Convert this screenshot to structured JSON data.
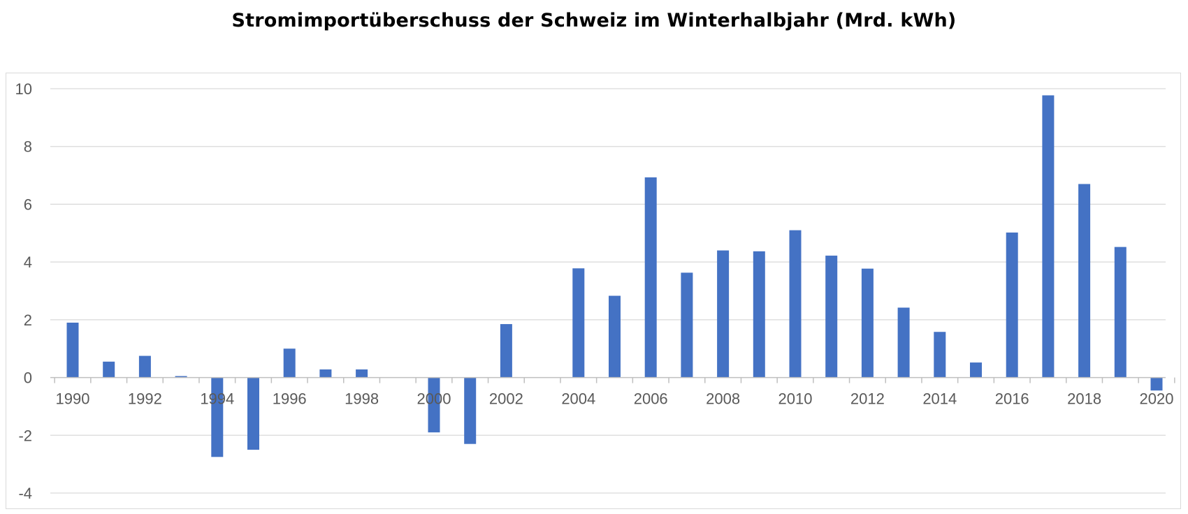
{
  "chart_data": {
    "type": "bar",
    "title": "Stromimportüberschuss der Schweiz im Winterhalbjahr (Mrd. kWh)",
    "xlabel": "",
    "ylabel": "",
    "categories": [
      1990,
      1991,
      1992,
      1993,
      1994,
      1995,
      1996,
      1997,
      1998,
      1999,
      2000,
      2001,
      2002,
      2003,
      2004,
      2005,
      2006,
      2007,
      2008,
      2009,
      2010,
      2011,
      2012,
      2013,
      2014,
      2015,
      2016,
      2017,
      2018,
      2019,
      2020
    ],
    "x_tick_labels": [
      "1990",
      "1992",
      "1994",
      "1996",
      "1998",
      "2000",
      "2002",
      "2004",
      "2006",
      "2008",
      "2010",
      "2012",
      "2014",
      "2016",
      "2018",
      "2020"
    ],
    "values": [
      1.9,
      0.55,
      0.75,
      0.05,
      -2.75,
      -2.5,
      1.0,
      0.28,
      0.28,
      0.0,
      -1.9,
      -2.3,
      1.85,
      0.0,
      3.78,
      2.83,
      6.93,
      3.63,
      4.4,
      4.37,
      5.1,
      4.22,
      3.77,
      2.42,
      1.58,
      0.52,
      5.02,
      9.77,
      6.7,
      4.52,
      -0.45
    ],
    "ylim": [
      -4,
      10
    ],
    "y_ticks": [
      -4,
      -2,
      0,
      2,
      4,
      6,
      8,
      10
    ],
    "y_tick_labels": [
      "-4",
      "-2",
      "0",
      "2",
      "4",
      "6",
      "8",
      "10"
    ],
    "grid": true,
    "legend": "none",
    "colors": {
      "bar": "#4472c4",
      "grid": "#d9d9d9",
      "axis": "#bfbfbf",
      "tick_text": "#595959"
    }
  }
}
